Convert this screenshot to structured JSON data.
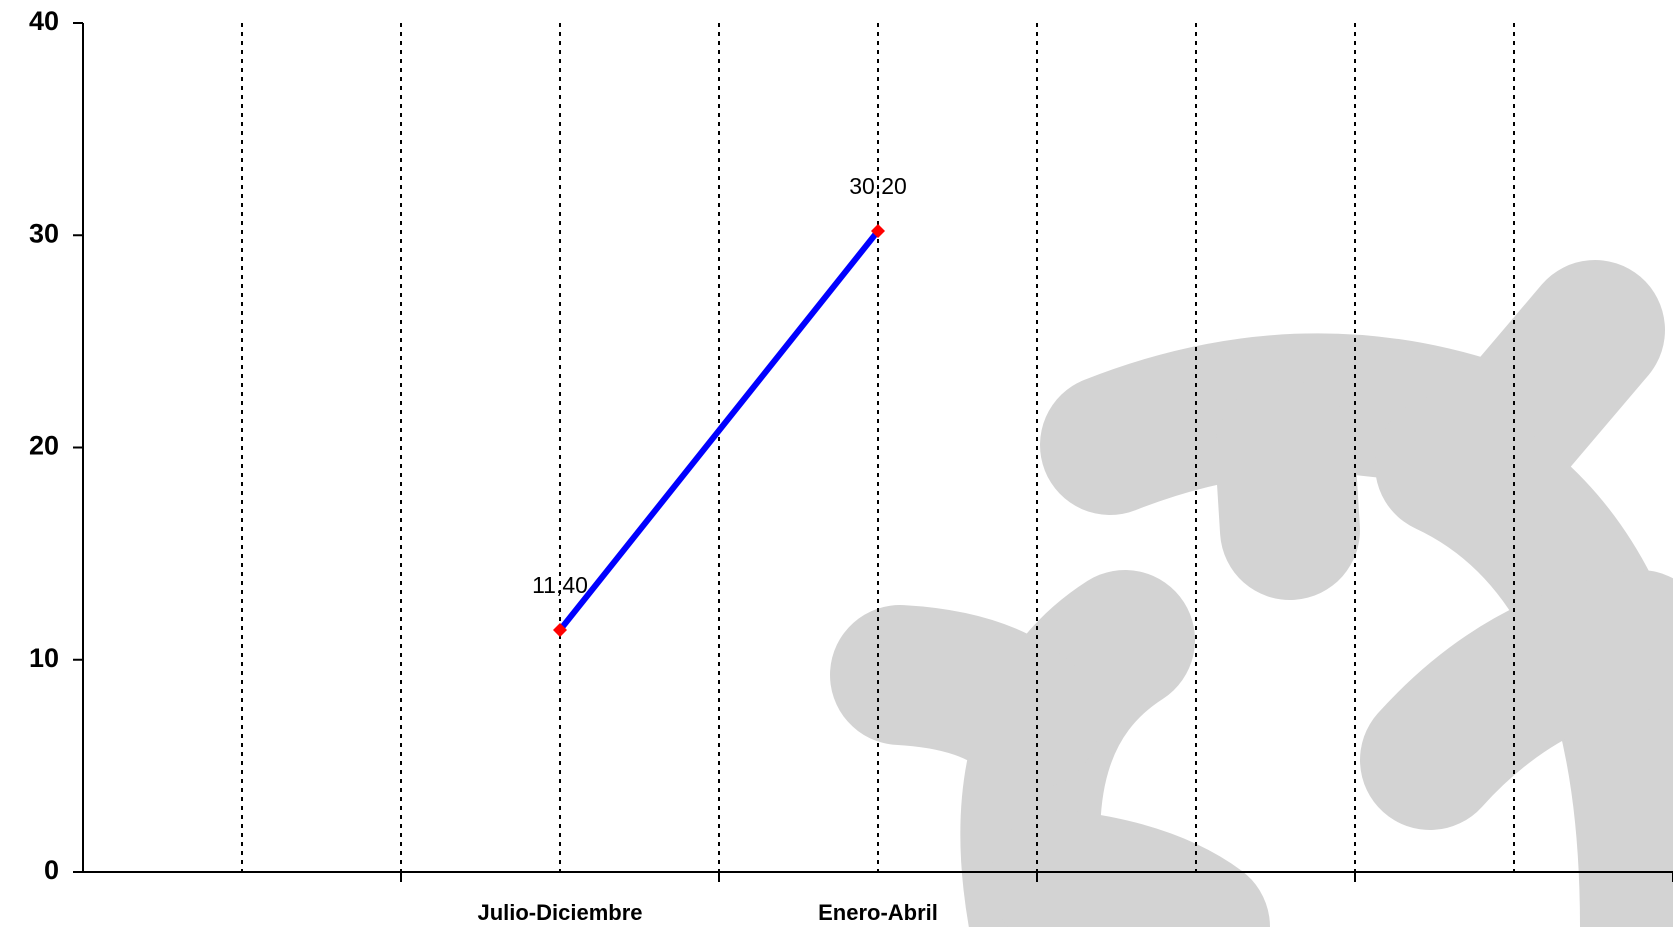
{
  "chart_data": {
    "type": "line",
    "categories": [
      null,
      "Julio-Diciembre",
      "Enero-Abril",
      null,
      null
    ],
    "series": [
      {
        "values": [
          null,
          11.4,
          30.2,
          null,
          null
        ],
        "value_labels": [
          null,
          "11,40",
          "30,20",
          null,
          null
        ],
        "color": "#0000ff",
        "marker_color": "#ff0000"
      }
    ],
    "ylim": [
      0,
      40
    ],
    "yticks": [
      0,
      10,
      20,
      30,
      40
    ],
    "grid": "vertical-dotted"
  }
}
